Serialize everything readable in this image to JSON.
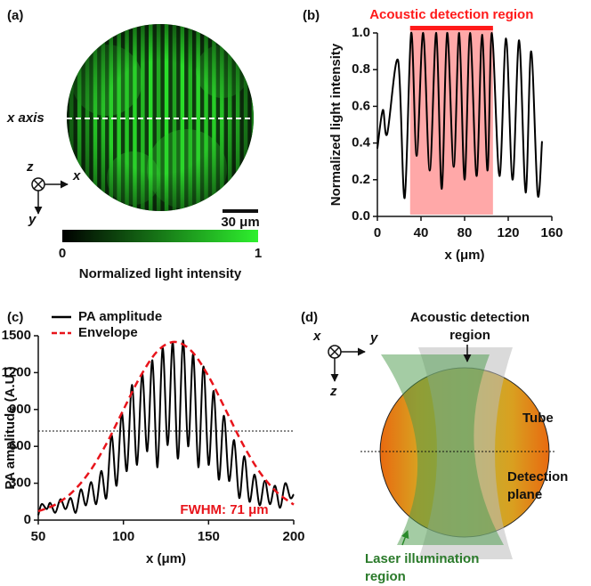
{
  "panels": {
    "a": {
      "label": "(a)",
      "axis_label": "x axis",
      "axes": {
        "z": "z",
        "x": "x",
        "y": "y"
      },
      "scale_bar": "30 μm",
      "colorbar": {
        "ticks": [
          0,
          1
        ],
        "label": "Normalized light intensity",
        "colors": [
          "#000000",
          "#2ef02e"
        ]
      }
    },
    "d": {
      "label": "(d)",
      "axes": {
        "x": "x",
        "y": "y",
        "z": "z"
      },
      "labels": {
        "acoustic": [
          "Acoustic detection",
          "region"
        ],
        "tube": "Tube",
        "plane": [
          "Detection",
          "plane"
        ],
        "laser": [
          "Laser illumination",
          "region"
        ]
      }
    }
  },
  "chart_data": [
    {
      "type": "line",
      "panel_label": "(b)",
      "xlabel": "x (μm)",
      "ylabel": "Normalized light intensity",
      "color": "#000000",
      "x": [
        0,
        5,
        9,
        19,
        25,
        31,
        36,
        42,
        48,
        54,
        59,
        64,
        70,
        75,
        80,
        85,
        91,
        96,
        101,
        105,
        112,
        118,
        124,
        130,
        136,
        141,
        147,
        151
      ],
      "values": [
        0.37,
        0.58,
        0.45,
        0.85,
        0.1,
        1.0,
        0.33,
        1.0,
        0.25,
        1.0,
        0.15,
        1.0,
        0.27,
        1.0,
        0.2,
        1.0,
        0.22,
        0.99,
        0.25,
        1.0,
        0.22,
        0.97,
        0.2,
        0.96,
        0.13,
        0.9,
        0.12,
        0.41
      ],
      "xlim": [
        0,
        160
      ],
      "xticks": [
        0,
        40,
        80,
        120,
        160
      ],
      "ylim": [
        0,
        1
      ],
      "yticks": [
        {
          "value": 0,
          "label": "0.0"
        },
        0.2,
        0.4,
        0.6,
        0.8,
        {
          "value": 1,
          "label": "1.0"
        }
      ],
      "region": {
        "label": "Acoustic detection region",
        "x": [
          30,
          106
        ],
        "color": "#ff1a1a"
      }
    },
    {
      "type": "line",
      "panel_label": "(c)",
      "xlabel": "x (μm)",
      "ylabel": "PA amplitude (A.U.)",
      "series": [
        {
          "name": "PA amplitude",
          "color": "#000000",
          "x": [
            50,
            52,
            55,
            57,
            60,
            63,
            66,
            69,
            72,
            75,
            78,
            81,
            84,
            87,
            90,
            93,
            96,
            99,
            102,
            105,
            108,
            111,
            114,
            117,
            120,
            123,
            126,
            129,
            132,
            135,
            138,
            141,
            144,
            147,
            150,
            153,
            156,
            159,
            162,
            165,
            168,
            171,
            174,
            177,
            180,
            183,
            186,
            189,
            192,
            195,
            198,
            200
          ],
          "values": [
            40,
            130,
            90,
            140,
            60,
            170,
            90,
            180,
            60,
            250,
            120,
            310,
            130,
            400,
            180,
            690,
            280,
            870,
            400,
            1100,
            450,
            1190,
            560,
            1300,
            430,
            1400,
            610,
            1450,
            500,
            1460,
            600,
            1350,
            430,
            1250,
            450,
            1050,
            330,
            850,
            320,
            650,
            180,
            520,
            150,
            370,
            120,
            320,
            130,
            280,
            100,
            300,
            180,
            210
          ]
        },
        {
          "name": "Envelope",
          "color": "#e8141b",
          "dash": true,
          "x": [
            50,
            60,
            70,
            80,
            90,
            100,
            110,
            120,
            130,
            140,
            150,
            160,
            170,
            180,
            190,
            200
          ],
          "values": [
            72,
            126,
            228,
            391,
            621,
            898,
            1170,
            1375,
            1450,
            1375,
            1170,
            898,
            621,
            391,
            228,
            126
          ]
        }
      ],
      "reference_line": 725,
      "annotation": "FWHM: 71 μm",
      "annotation_color": "#e8141b",
      "xlim": [
        50,
        200
      ],
      "xticks": [
        50,
        100,
        150,
        200
      ],
      "ylim": [
        0,
        1500
      ],
      "yticks": [
        0,
        300,
        600,
        900,
        1200,
        1500
      ]
    }
  ]
}
